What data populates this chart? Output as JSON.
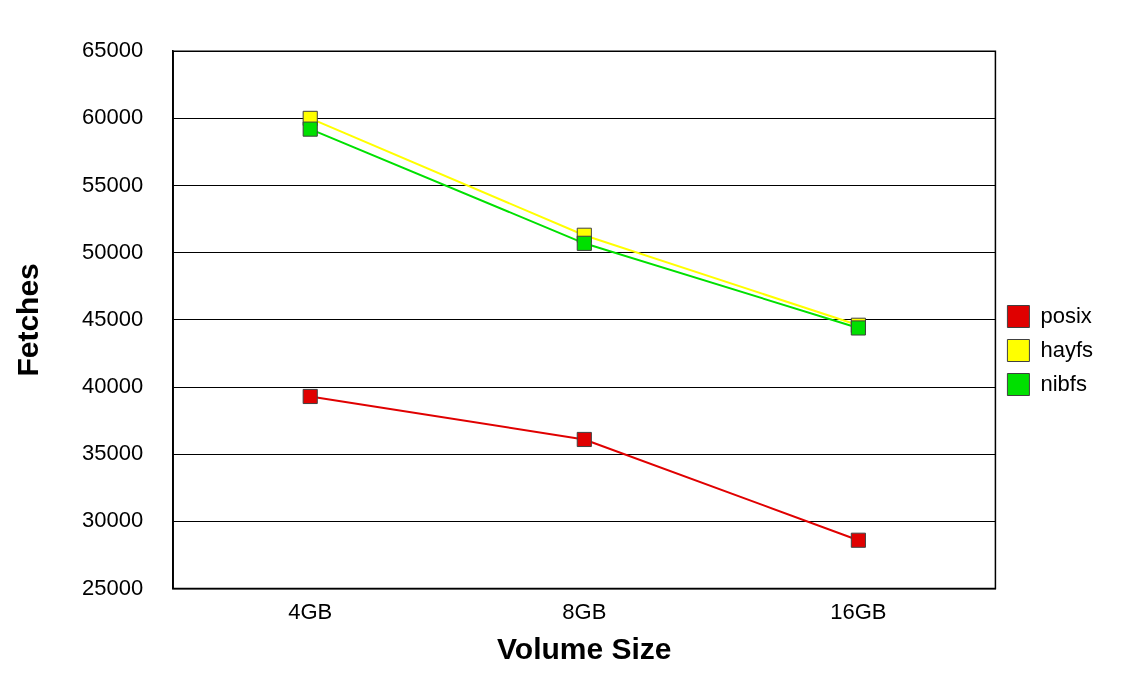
{
  "chart_data": {
    "type": "line",
    "xlabel": "Volume Size",
    "ylabel": "Fetches",
    "categories": [
      "4GB",
      "8GB",
      "16GB"
    ],
    "series": [
      {
        "name": "posix",
        "color": "#e00000",
        "values": [
          39300,
          36100,
          28600
        ]
      },
      {
        "name": "hayfs",
        "color": "#ffff00",
        "values": [
          60000,
          51300,
          44600
        ]
      },
      {
        "name": "nibfs",
        "color": "#00e000",
        "values": [
          59200,
          50700,
          44400
        ]
      }
    ],
    "ylim": [
      25000,
      65000
    ],
    "yticks": [
      25000,
      30000,
      35000,
      40000,
      45000,
      50000,
      55000,
      60000,
      65000
    ],
    "grid": "y",
    "legend": "right",
    "marker": "square",
    "line_style": "solid"
  }
}
